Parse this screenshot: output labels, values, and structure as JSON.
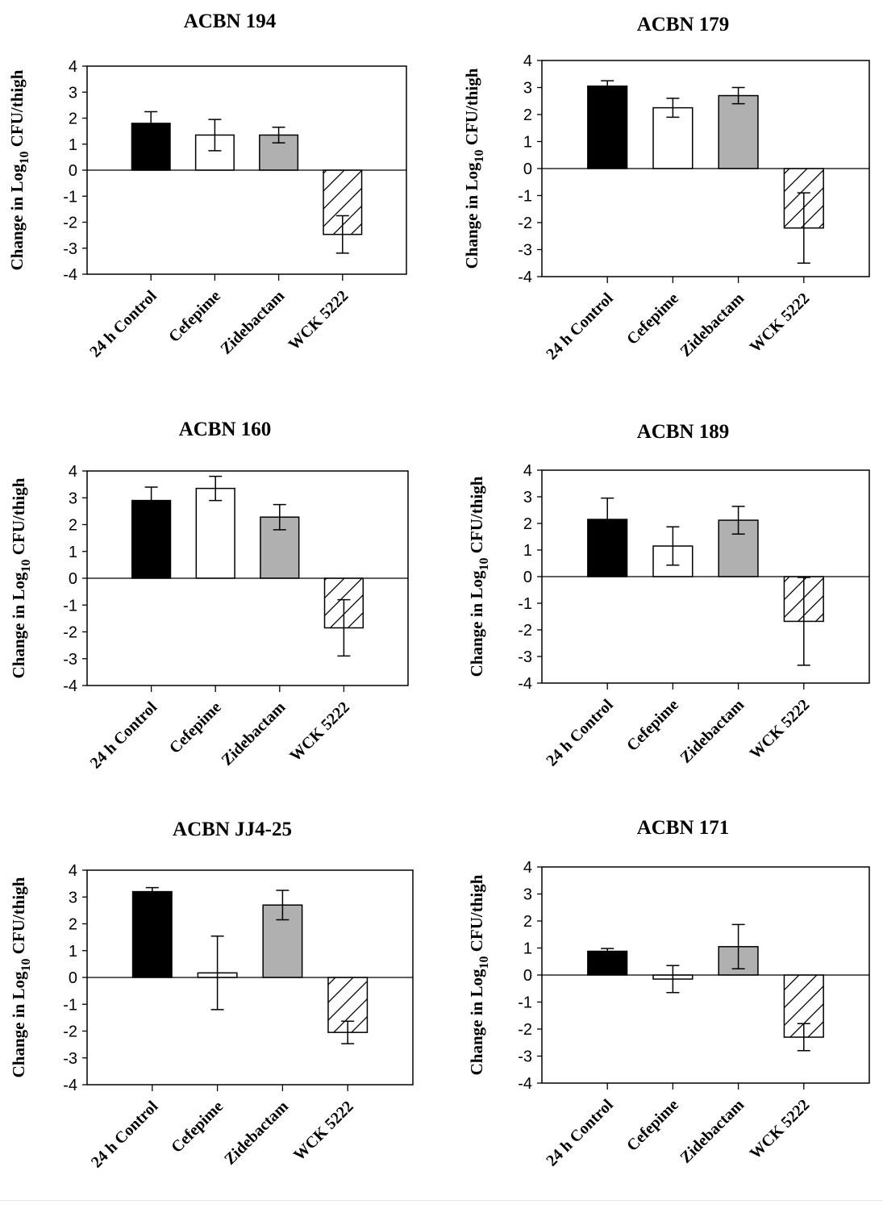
{
  "chart_data": [
    {
      "type": "bar",
      "title": "ACBN 194",
      "categories": [
        "24 h Control",
        "Cefepime",
        "Zidebactam",
        "WCK 5222"
      ],
      "values": [
        1.8,
        1.35,
        1.35,
        -2.47
      ],
      "errors": [
        0.45,
        0.6,
        0.3,
        0.72
      ],
      "ylabel": {
        "pre": "Change in Log",
        "sub": "10",
        "post": " CFU/thigh"
      },
      "ylim": [
        -4,
        4
      ],
      "yticks": [
        4,
        3,
        2,
        1,
        0,
        -1,
        -2,
        -3,
        -4
      ]
    },
    {
      "type": "bar",
      "title": "ACBN 179",
      "categories": [
        "24 h Control",
        "Cefepime",
        "Zidebactam",
        "WCK 5222"
      ],
      "values": [
        3.05,
        2.25,
        2.7,
        -2.2
      ],
      "errors": [
        0.2,
        0.35,
        0.3,
        1.3
      ],
      "ylabel": {
        "pre": "Change in Log",
        "sub": "10",
        "post": " CFU/thigh"
      },
      "ylim": [
        -4,
        4
      ],
      "yticks": [
        4,
        3,
        2,
        1,
        0,
        -1,
        -2,
        -3,
        -4
      ]
    },
    {
      "type": "bar",
      "title": "ACBN 160",
      "categories": [
        "24 h Control",
        "Cefepime",
        "Zidebactam",
        "WCK 5222"
      ],
      "values": [
        2.9,
        3.35,
        2.28,
        -1.85
      ],
      "errors": [
        0.5,
        0.45,
        0.47,
        1.05
      ],
      "ylabel": {
        "pre": "Change in Log",
        "sub": "10",
        "post": " CFU/thigh"
      },
      "ylim": [
        -4,
        4
      ],
      "yticks": [
        4,
        3,
        2,
        1,
        0,
        -1,
        -2,
        -3,
        -4
      ]
    },
    {
      "type": "bar",
      "title": "ACBN 189",
      "categories": [
        "24 h Control",
        "Cefepime",
        "Zidebactam",
        "WCK 5222"
      ],
      "values": [
        2.15,
        1.15,
        2.12,
        -1.68
      ],
      "errors": [
        0.8,
        0.72,
        0.52,
        1.65
      ],
      "ylabel": {
        "pre": "Change in Log",
        "sub": "10",
        "post": " CFU/thigh"
      },
      "ylim": [
        -4,
        4
      ],
      "yticks": [
        4,
        3,
        2,
        1,
        0,
        -1,
        -2,
        -3,
        -4
      ]
    },
    {
      "type": "bar",
      "title": "ACBN JJ4-25",
      "categories": [
        "24 h Control",
        "Cefepime",
        "Zidebactam",
        "WCK 5222"
      ],
      "values": [
        3.2,
        0.17,
        2.7,
        -2.05
      ],
      "errors": [
        0.15,
        1.37,
        0.55,
        0.42
      ],
      "ylabel": {
        "pre": "Change in Log",
        "sub": "10",
        "post": " CFU/thigh"
      },
      "ylim": [
        -4,
        4
      ],
      "yticks": [
        4,
        3,
        2,
        1,
        0,
        -1,
        -2,
        -3,
        -4
      ]
    },
    {
      "type": "bar",
      "title": "ACBN 171",
      "categories": [
        "24 h Control",
        "Cefepime",
        "Zidebactam",
        "WCK 5222"
      ],
      "values": [
        0.88,
        -0.15,
        1.05,
        -2.3
      ],
      "errors": [
        0.1,
        0.5,
        0.82,
        0.5
      ],
      "ylabel": {
        "pre": "Change in Log",
        "sub": "10",
        "post": " CFU/thigh"
      },
      "ylim": [
        -4,
        4
      ],
      "yticks": [
        4,
        3,
        2,
        1,
        0,
        -1,
        -2,
        -3,
        -4
      ]
    }
  ],
  "colors": {
    "24 h Control": "#000000",
    "Cefepime": "#ffffff",
    "Zidebactam": "#b0b0b0",
    "WCK 5222": "hatch"
  }
}
